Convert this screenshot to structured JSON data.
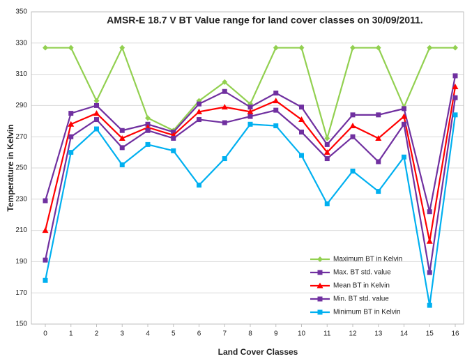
{
  "chart_data": {
    "type": "line",
    "title": "AMSR-E 18.7 V BT Value range for land cover classes on 30/09/2011.",
    "x_label": "Land Cover Classes",
    "y_label": "Temperature in Kelvin",
    "categories": [
      "0",
      "1",
      "2",
      "3",
      "4",
      "5",
      "6",
      "7",
      "8",
      "9",
      "10",
      "11",
      "12",
      "13",
      "14",
      "15",
      "16"
    ],
    "ylim": [
      150,
      350
    ],
    "yticks": [
      150,
      170,
      190,
      210,
      230,
      250,
      270,
      290,
      310,
      330,
      350
    ],
    "grid": true,
    "legend": "lower right",
    "series": [
      {
        "name": "Maximum BT in Kelvin",
        "color": "#92d050",
        "marker": "diamond",
        "values": [
          327,
          327,
          293,
          327,
          282,
          274,
          293,
          305,
          291,
          327,
          327,
          269,
          327,
          327,
          289,
          327,
          327
        ]
      },
      {
        "name": "Max. BT std. value",
        "color": "#7030a0",
        "marker": "square",
        "values": [
          229,
          285,
          290,
          274,
          278,
          273,
          291,
          299,
          289,
          298,
          289,
          265,
          284,
          284,
          288,
          222,
          309
        ]
      },
      {
        "name": "Mean BT in Kelvin",
        "color": "#ff0000",
        "marker": "triangle",
        "values": [
          210,
          278,
          285,
          269,
          276,
          271,
          286,
          289,
          286,
          293,
          281,
          260,
          277,
          269,
          283,
          203,
          302
        ]
      },
      {
        "name": "Min. BT std. value",
        "color": "#7030a0",
        "marker": "square",
        "values": [
          191,
          270,
          281,
          263,
          274,
          269,
          281,
          279,
          283,
          287,
          273,
          256,
          270,
          254,
          278,
          183,
          295
        ]
      },
      {
        "name": "Minimum BT in Kelvin",
        "color": "#00b0f0",
        "marker": "square",
        "values": [
          178,
          260,
          275,
          252,
          265,
          261,
          239,
          256,
          278,
          277,
          258,
          227,
          248,
          235,
          257,
          162,
          284
        ]
      }
    ]
  }
}
